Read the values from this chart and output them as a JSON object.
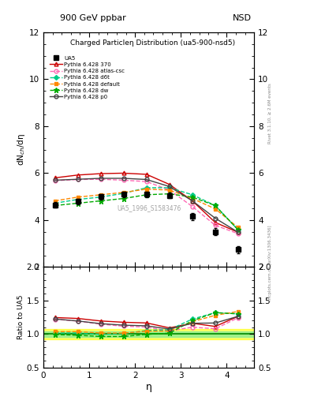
{
  "title_left": "900 GeV ppbar",
  "title_right": "NSD",
  "plot_title": "Charged Particleη Distribution",
  "plot_subtitle": "(ua5-900-nsd5)",
  "ylabel_main": "dN$_{ch}$/dη",
  "ylabel_ratio": "Ratio to UA5",
  "xlabel": "η",
  "right_label_top": "Rivet 3.1.10, ≥ 2.6M events",
  "right_label_bottom": "mcplots.cern.ch [arXiv:1306.3436]",
  "watermark": "UA5_1996_S1583476",
  "ua5_x": [
    0.25,
    0.75,
    1.25,
    1.75,
    2.25,
    2.75,
    3.25,
    3.75,
    4.25
  ],
  "ua5_y": [
    4.65,
    4.8,
    5.0,
    5.1,
    5.1,
    5.05,
    4.15,
    3.5,
    2.75
  ],
  "ua5_yerr": [
    0.12,
    0.12,
    0.12,
    0.12,
    0.12,
    0.12,
    0.15,
    0.15,
    0.15
  ],
  "py370_x": [
    0.25,
    0.75,
    1.25,
    1.75,
    2.25,
    2.75,
    3.25,
    3.75,
    4.25
  ],
  "py370_y": [
    5.8,
    5.92,
    5.98,
    6.0,
    5.95,
    5.52,
    4.82,
    3.9,
    3.48
  ],
  "py_atl_x": [
    0.25,
    0.75,
    1.25,
    1.75,
    2.25,
    2.75,
    3.25,
    3.75,
    4.25
  ],
  "py_atl_y": [
    5.68,
    5.73,
    5.74,
    5.7,
    5.64,
    5.28,
    4.58,
    3.78,
    3.42
  ],
  "py_d6t_x": [
    0.25,
    0.75,
    1.25,
    1.75,
    2.25,
    2.75,
    3.25,
    3.75,
    4.25
  ],
  "py_d6t_y": [
    4.72,
    4.88,
    4.98,
    5.14,
    5.38,
    5.38,
    5.08,
    4.62,
    3.58
  ],
  "py_def_x": [
    0.25,
    0.75,
    1.25,
    1.75,
    2.25,
    2.75,
    3.25,
    3.75,
    4.25
  ],
  "py_def_y": [
    4.82,
    4.98,
    5.08,
    5.18,
    5.32,
    5.28,
    4.92,
    4.48,
    3.68
  ],
  "py_dw_x": [
    0.25,
    0.75,
    1.25,
    1.75,
    2.25,
    2.75,
    3.25,
    3.75,
    4.25
  ],
  "py_dw_y": [
    4.62,
    4.72,
    4.82,
    4.92,
    5.08,
    5.12,
    4.98,
    4.62,
    3.58
  ],
  "py_p0_x": [
    0.25,
    0.75,
    1.25,
    1.75,
    2.25,
    2.75,
    3.25,
    3.75,
    4.25
  ],
  "py_p0_y": [
    5.7,
    5.74,
    5.78,
    5.78,
    5.73,
    5.43,
    4.82,
    4.08,
    3.48
  ],
  "ylim_main": [
    2,
    12
  ],
  "ylim_ratio": [
    0.5,
    2.0
  ],
  "xlim": [
    0,
    4.6
  ],
  "yticks_main": [
    2,
    4,
    6,
    8,
    10,
    12
  ],
  "yticks_ratio": [
    0.5,
    1.0,
    1.5,
    2.0
  ],
  "color_370": "#cc0000",
  "color_atl": "#ff69b4",
  "color_d6t": "#00cc88",
  "color_def": "#ff8800",
  "color_dw": "#00aa00",
  "color_p0": "#444444",
  "color_ua5": "#000000",
  "band_green_lo": 0.96,
  "band_green_hi": 1.04,
  "band_yellow_lo": 0.92,
  "band_yellow_hi": 1.08
}
